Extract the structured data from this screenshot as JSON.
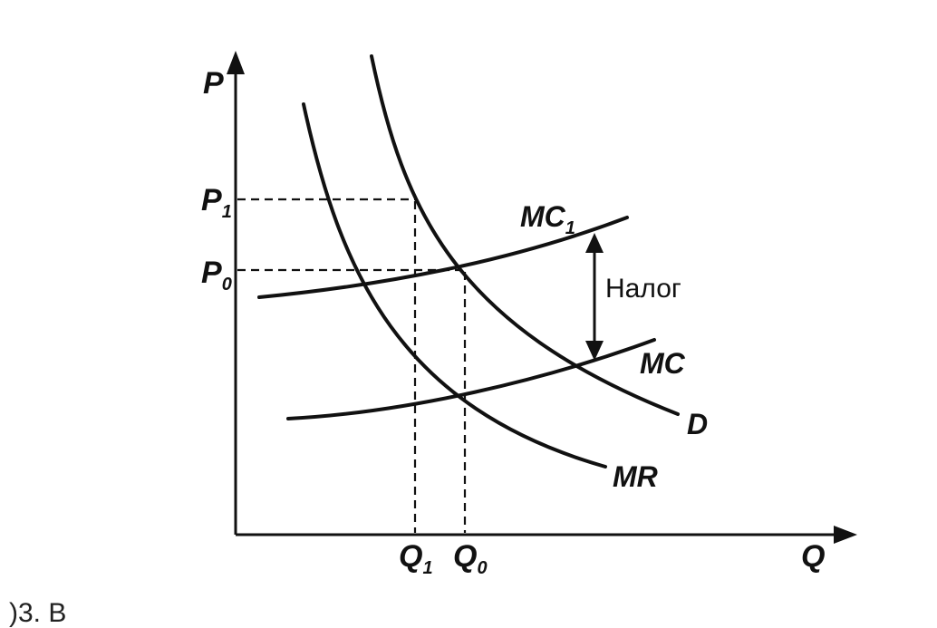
{
  "axes": {
    "y_label": "P",
    "x_label": "Q"
  },
  "price_levels": [
    {
      "main": "P",
      "sub": "1"
    },
    {
      "main": "P",
      "sub": "0"
    }
  ],
  "quantity_levels": [
    {
      "main": "Q",
      "sub": "1"
    },
    {
      "main": "Q",
      "sub": "0"
    }
  ],
  "curves": {
    "mc1": {
      "main": "MC",
      "sub": "1"
    },
    "mc": "MC",
    "d": "D",
    "mr": "MR"
  },
  "tax_label": "Налог",
  "bottom_fragment": ")3. В"
}
